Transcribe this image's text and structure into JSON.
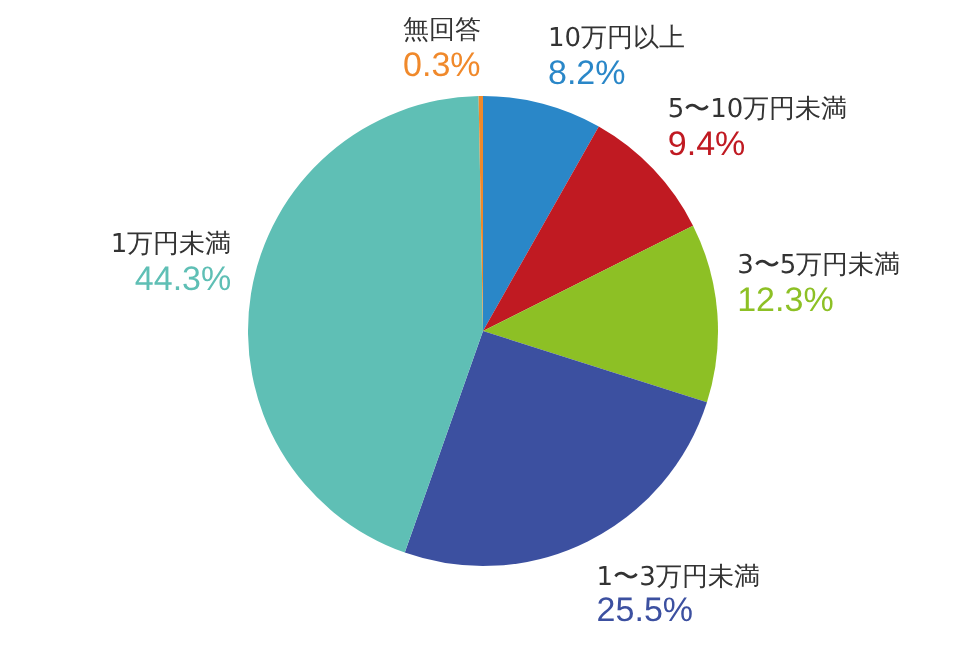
{
  "chart_data": {
    "type": "pie",
    "categories": [
      "10万円以上",
      "5〜10万円未満",
      "3〜5万円未満",
      "1〜3万円未満",
      "1万円未満",
      "無回答"
    ],
    "values": [
      8.2,
      9.4,
      12.3,
      25.5,
      44.3,
      0.3
    ],
    "value_labels": [
      "8.2%",
      "9.4%",
      "12.3%",
      "25.5%",
      "44.3%",
      "0.3%"
    ],
    "colors": [
      "#2a87c8",
      "#c01a22",
      "#8dc025",
      "#3c50a0",
      "#5fbfb5",
      "#f0892b"
    ],
    "legend": false
  }
}
